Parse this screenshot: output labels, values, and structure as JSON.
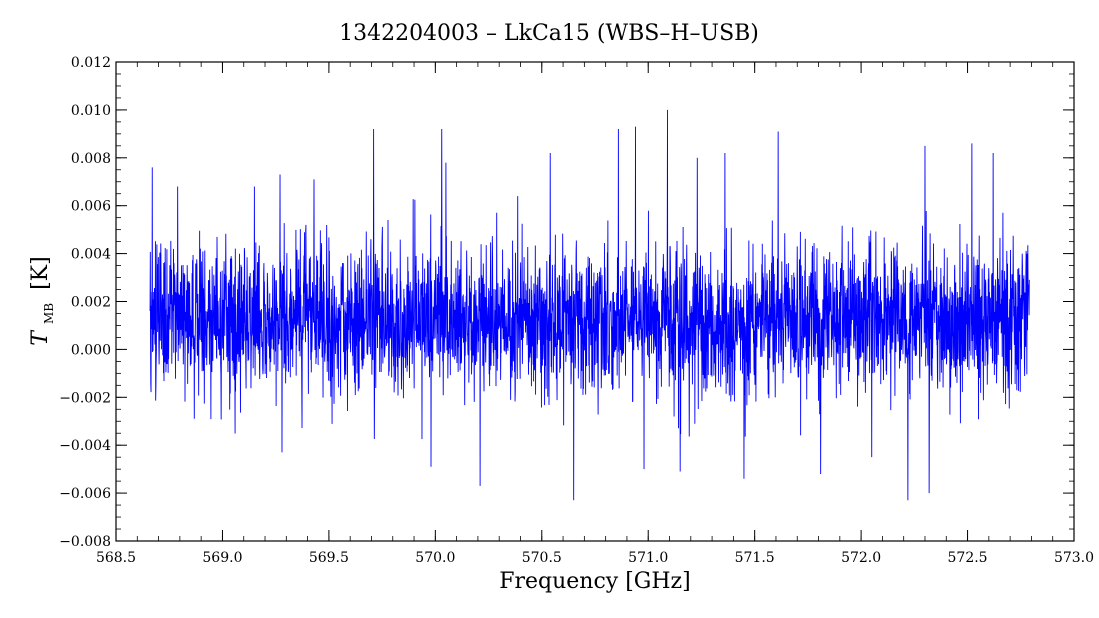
{
  "chart_data": {
    "type": "line",
    "title": "1342204003 – LkCa15 (WBS–H–USB)",
    "xlabel": "Frequency [GHz]",
    "ylabel": {
      "symbol": "T",
      "subscript": "MB",
      "unit": "[K]"
    },
    "xlim": [
      568.5,
      573.0
    ],
    "ylim": [
      -0.008,
      0.012
    ],
    "x_major_ticks": [
      568.5,
      569.0,
      569.5,
      570.0,
      570.5,
      571.0,
      571.5,
      572.0,
      572.5,
      573.0
    ],
    "x_tick_labels": [
      "568.5",
      "569.0",
      "569.5",
      "570.0",
      "570.5",
      "571.0",
      "571.5",
      "572.0",
      "572.5",
      "573.0"
    ],
    "x_minor_step": 0.1,
    "y_major_ticks": [
      -0.008,
      -0.006,
      -0.004,
      -0.002,
      0.0,
      0.002,
      0.004,
      0.006,
      0.008,
      0.01,
      0.012
    ],
    "y_tick_labels": [
      "−0.008",
      "−0.006",
      "−0.004",
      "−0.002",
      "0.000",
      "0.002",
      "0.004",
      "0.006",
      "0.008",
      "0.010",
      "0.012"
    ],
    "y_minor_step": 0.0005,
    "grid": false,
    "series": [
      {
        "color": "#0000ff",
        "x_start": 568.66,
        "x_end": 572.79,
        "baseline": 0.0012,
        "noise_rms": 0.0015,
        "min": -0.0063,
        "max": 0.01,
        "peaks": [
          {
            "x": 568.67,
            "y": 0.0076
          },
          {
            "x": 568.79,
            "y": 0.0068
          },
          {
            "x": 569.15,
            "y": 0.0068
          },
          {
            "x": 569.27,
            "y": 0.0073
          },
          {
            "x": 569.43,
            "y": 0.0071
          },
          {
            "x": 569.71,
            "y": 0.0092
          },
          {
            "x": 570.03,
            "y": 0.0092
          },
          {
            "x": 570.05,
            "y": 0.0078
          },
          {
            "x": 570.54,
            "y": 0.0082
          },
          {
            "x": 570.86,
            "y": 0.0092
          },
          {
            "x": 570.94,
            "y": 0.0093
          },
          {
            "x": 571.09,
            "y": 0.01
          },
          {
            "x": 571.23,
            "y": 0.008
          },
          {
            "x": 571.36,
            "y": 0.0082
          },
          {
            "x": 571.61,
            "y": 0.0091
          },
          {
            "x": 572.3,
            "y": 0.0085
          },
          {
            "x": 572.52,
            "y": 0.0086
          },
          {
            "x": 572.62,
            "y": 0.0082
          }
        ],
        "troughs": [
          {
            "x": 569.28,
            "y": -0.0043
          },
          {
            "x": 569.98,
            "y": -0.0049
          },
          {
            "x": 570.21,
            "y": -0.0057
          },
          {
            "x": 570.65,
            "y": -0.0063
          },
          {
            "x": 570.98,
            "y": -0.005
          },
          {
            "x": 571.15,
            "y": -0.0051
          },
          {
            "x": 571.45,
            "y": -0.0054
          },
          {
            "x": 571.81,
            "y": -0.0052
          },
          {
            "x": 572.05,
            "y": -0.0045
          },
          {
            "x": 572.22,
            "y": -0.0063
          },
          {
            "x": 572.32,
            "y": -0.006
          }
        ]
      }
    ]
  }
}
